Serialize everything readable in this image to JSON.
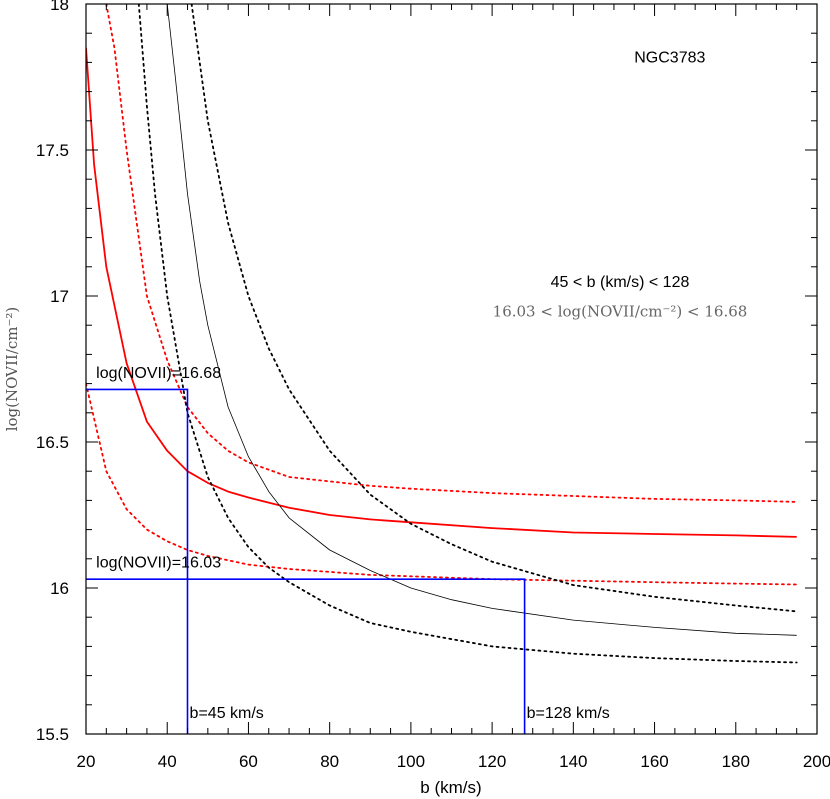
{
  "chart_data": {
    "type": "line",
    "title": "NGC3783",
    "xlabel": "b (km/s)",
    "ylabel": "log(NOVII/cm⁻²)",
    "xlim": [
      20,
      200
    ],
    "ylim": [
      15.5,
      18
    ],
    "xticks": [
      20,
      40,
      60,
      80,
      100,
      120,
      140,
      160,
      180,
      200
    ],
    "yticks": [
      15.5,
      16,
      16.5,
      17,
      17.5,
      18
    ],
    "x_tick_labels": [
      "20",
      "40",
      "60",
      "80",
      "100",
      "120",
      "140",
      "160",
      "180",
      "200"
    ],
    "y_tick_labels": [
      "15.5",
      "16",
      "16.5",
      "17",
      "17.5",
      "18"
    ],
    "grid": false,
    "series": [
      {
        "color": "#ff0000",
        "style": "solid",
        "width": 1.8,
        "x": [
          20,
          22,
          25,
          30,
          35,
          40,
          45,
          50,
          55,
          60,
          70,
          80,
          90,
          100,
          120,
          140,
          160,
          180,
          195
        ],
        "y": [
          17.85,
          17.45,
          17.1,
          16.77,
          16.57,
          16.47,
          16.4,
          16.36,
          16.33,
          16.31,
          16.275,
          16.25,
          16.235,
          16.225,
          16.205,
          16.19,
          16.185,
          16.18,
          16.175
        ]
      },
      {
        "color": "#ff0000",
        "style": "dotted",
        "width": 1.8,
        "x": [
          25,
          27,
          30,
          35,
          40,
          45,
          50,
          55,
          60,
          70,
          80,
          90,
          100,
          120,
          140,
          160,
          180,
          195
        ],
        "y": [
          18,
          17.85,
          17.5,
          17.0,
          16.78,
          16.62,
          16.53,
          16.47,
          16.43,
          16.38,
          16.365,
          16.35,
          16.34,
          16.325,
          16.315,
          16.305,
          16.3,
          16.295
        ]
      },
      {
        "color": "#ff0000",
        "style": "dotted",
        "width": 1.8,
        "x": [
          20,
          25,
          30,
          35,
          40,
          45,
          50,
          55,
          60,
          70,
          80,
          90,
          100,
          120,
          140,
          160,
          180,
          195
        ],
        "y": [
          16.7,
          16.4,
          16.27,
          16.2,
          16.16,
          16.13,
          16.11,
          16.095,
          16.08,
          16.065,
          16.055,
          16.045,
          16.04,
          16.03,
          16.025,
          16.02,
          16.015,
          16.012
        ]
      },
      {
        "color": "#000000",
        "style": "solid",
        "width": 0.8,
        "x": [
          40,
          42,
          45,
          48,
          50,
          55,
          60,
          65,
          70,
          80,
          90,
          100,
          110,
          120,
          140,
          160,
          180,
          195
        ],
        "y": [
          18,
          17.75,
          17.35,
          17.05,
          16.9,
          16.62,
          16.45,
          16.33,
          16.24,
          16.13,
          16.06,
          16.0,
          15.96,
          15.93,
          15.89,
          15.865,
          15.845,
          15.838
        ]
      },
      {
        "color": "#000000",
        "style": "dotted",
        "width": 1.8,
        "x": [
          33,
          35,
          37,
          40,
          45,
          50,
          55,
          60,
          65,
          70,
          80,
          90,
          100,
          120,
          140,
          160,
          180,
          195
        ],
        "y": [
          18,
          17.65,
          17.35,
          17.0,
          16.6,
          16.38,
          16.24,
          16.14,
          16.07,
          16.02,
          15.94,
          15.88,
          15.85,
          15.8,
          15.775,
          15.76,
          15.75,
          15.745
        ]
      },
      {
        "color": "#000000",
        "style": "dotted",
        "width": 1.8,
        "x": [
          46,
          50,
          55,
          60,
          65,
          70,
          80,
          90,
          100,
          110,
          120,
          130,
          140,
          160,
          180,
          195
        ],
        "y": [
          18,
          17.6,
          17.25,
          17.0,
          16.82,
          16.68,
          16.47,
          16.32,
          16.22,
          16.15,
          16.09,
          16.05,
          16.01,
          15.97,
          15.94,
          15.92
        ]
      }
    ],
    "annotations": [
      {
        "text": "NGC3783",
        "x": 155,
        "y": 17.8
      },
      {
        "text": "45 < b (km/s) < 128",
        "x": 145,
        "y": 17.03
      },
      {
        "text": "16.03 < log(NOVII/cm⁻²) < 16.68",
        "x": 145,
        "y": 16.93
      },
      {
        "text": "log(NOVII)=16.68",
        "x": 22.5,
        "y": 16.72
      },
      {
        "text": "log(NOVII)=16.03",
        "x": 22.5,
        "y": 16.07
      },
      {
        "text": "b=45 km/s",
        "x": 45.5,
        "y": 15.555
      },
      {
        "text": "b=128 km/s",
        "x": 128.5,
        "y": 15.555
      }
    ],
    "reference_lines": [
      {
        "color": "#0000ff",
        "points": [
          [
            20,
            16.68
          ],
          [
            45,
            16.68
          ],
          [
            45,
            15.5
          ]
        ]
      },
      {
        "color": "#0000ff",
        "points": [
          [
            20,
            16.03
          ],
          [
            128,
            16.03
          ],
          [
            128,
            15.5
          ]
        ]
      }
    ]
  }
}
